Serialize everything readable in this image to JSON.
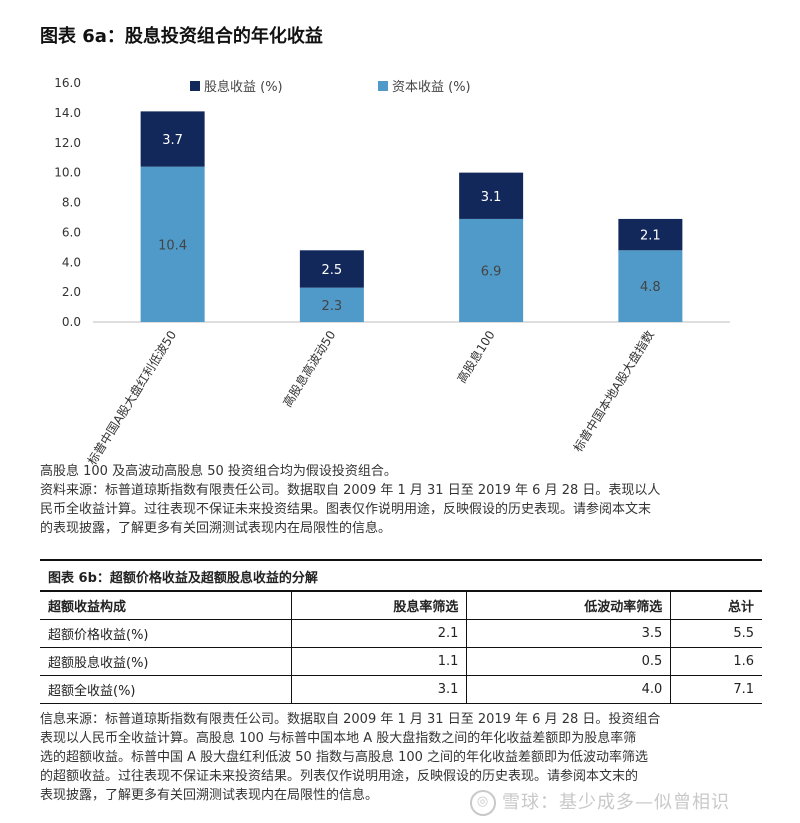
{
  "figure_a": {
    "title": "图表 6a：股息投资组合的年化收益",
    "note_lines": [
      "高股息 100 及高波动高股息 50 投资组合均为假设投资组合。",
      "资料来源：标普道琼斯指数有限责任公司。数据取自 2009 年 1 月 31 日至 2019 年 6 月 28 日。表现以人",
      "民币全收益计算。过往表现不保证未来投资结果。图表仅作说明用途，反映假设的历史表现。请参阅本文末",
      "的表现披露，了解更多有关回溯测试表现内在局限性的信息。"
    ]
  },
  "chart_data": {
    "type": "bar",
    "stacked": true,
    "categories": [
      "标普中国A股大盘红利低波50",
      "高股息高波动50",
      "高股息100",
      "标普中国本地A股大盘指数"
    ],
    "series": [
      {
        "name": "资本收益 (%)",
        "values": [
          10.4,
          2.3,
          6.9,
          4.8
        ],
        "color": "#4f9ac9",
        "label_color": "#444444"
      },
      {
        "name": "股息收益 (%)",
        "values": [
          3.7,
          2.5,
          3.1,
          2.1
        ],
        "color": "#13285a",
        "label_color": "#ffffff"
      }
    ],
    "ylim": [
      0,
      16
    ],
    "yticks": [
      "0.0",
      "2.0",
      "4.0",
      "6.0",
      "8.0",
      "10.0",
      "12.0",
      "14.0",
      "16.0"
    ],
    "legend_order": [
      "股息收益 (%)",
      "资本收益 (%)"
    ],
    "legend_position": "top",
    "grid": false
  },
  "figure_b": {
    "title": "图表 6b：超额价格收益及超额股息收益的分解",
    "headers": [
      "超额收益构成",
      "股息率筛选",
      "低波动率筛选",
      "总计"
    ],
    "rows": [
      [
        "超额价格收益(%)",
        "2.1",
        "3.5",
        "5.5"
      ],
      [
        "超额股息收益(%)",
        "1.1",
        "0.5",
        "1.6"
      ],
      [
        "超额全收益(%)",
        "3.1",
        "4.0",
        "7.1"
      ]
    ],
    "note_lines": [
      "信息来源：标普道琼斯指数有限责任公司。数据取自 2009 年 1 月 31 日至 2019 年 6 月 28 日。投资组合",
      "表现以人民币全收益计算。高股息 100 与标普中国本地 A 股大盘指数之间的年化收益差额即为股息率筛",
      "选的超额收益。标普中国 A 股大盘红利低波 50 指数与高股息 100 之间的年化收益差额即为低波动率筛选",
      "的超额收益。过往表现不保证未来投资结果。列表仅作说明用途，反映假设的历史表现。请参阅本文末的",
      "表现披露，了解更多有关回溯测试表现内在局限性的信息。"
    ]
  },
  "watermark": "雪球：基少成多—似曾相识"
}
